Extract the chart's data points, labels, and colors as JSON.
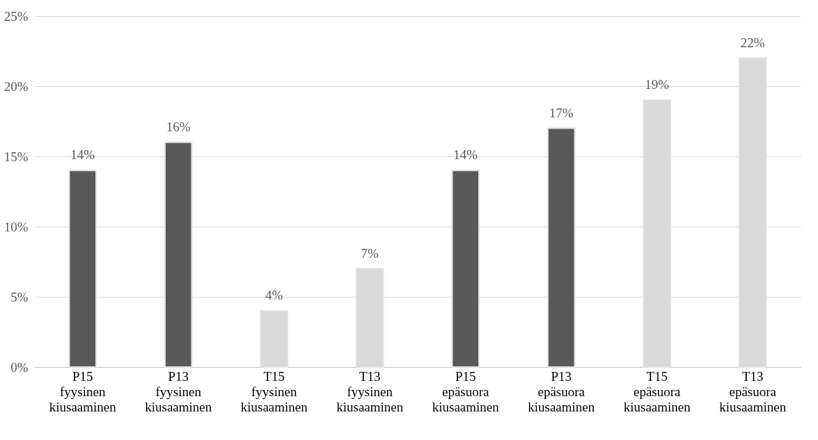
{
  "chart_data": {
    "type": "bar",
    "categories": [
      "P15 fyysinen kiusaaminen",
      "P13 fyysinen kiusaaminen",
      "T15 fyysinen kiusaaminen",
      "T13 fyysinen kiusaaminen",
      "P15 epäsuora kiusaaminen",
      "P13 epäsuora kiusaaminen",
      "T15 epäsuora kiusaaminen",
      "T13 epäsuora kiusaaminen"
    ],
    "values": [
      14,
      16,
      4,
      7,
      14,
      17,
      19,
      22
    ],
    "value_labels": [
      "14%",
      "16%",
      "4%",
      "7%",
      "14%",
      "17%",
      "19%",
      "22%"
    ],
    "colors": [
      "#595959",
      "#595959",
      "#d9d9d9",
      "#d9d9d9",
      "#595959",
      "#595959",
      "#d9d9d9",
      "#d9d9d9"
    ],
    "ylim": [
      0,
      25
    ],
    "yticks": [
      {
        "value": 0,
        "label": "0%"
      },
      {
        "value": 5,
        "label": "5%"
      },
      {
        "value": 10,
        "label": "10%"
      },
      {
        "value": 15,
        "label": "15%"
      },
      {
        "value": 20,
        "label": "20%"
      },
      {
        "value": 25,
        "label": "25%"
      }
    ],
    "grid": "y"
  }
}
